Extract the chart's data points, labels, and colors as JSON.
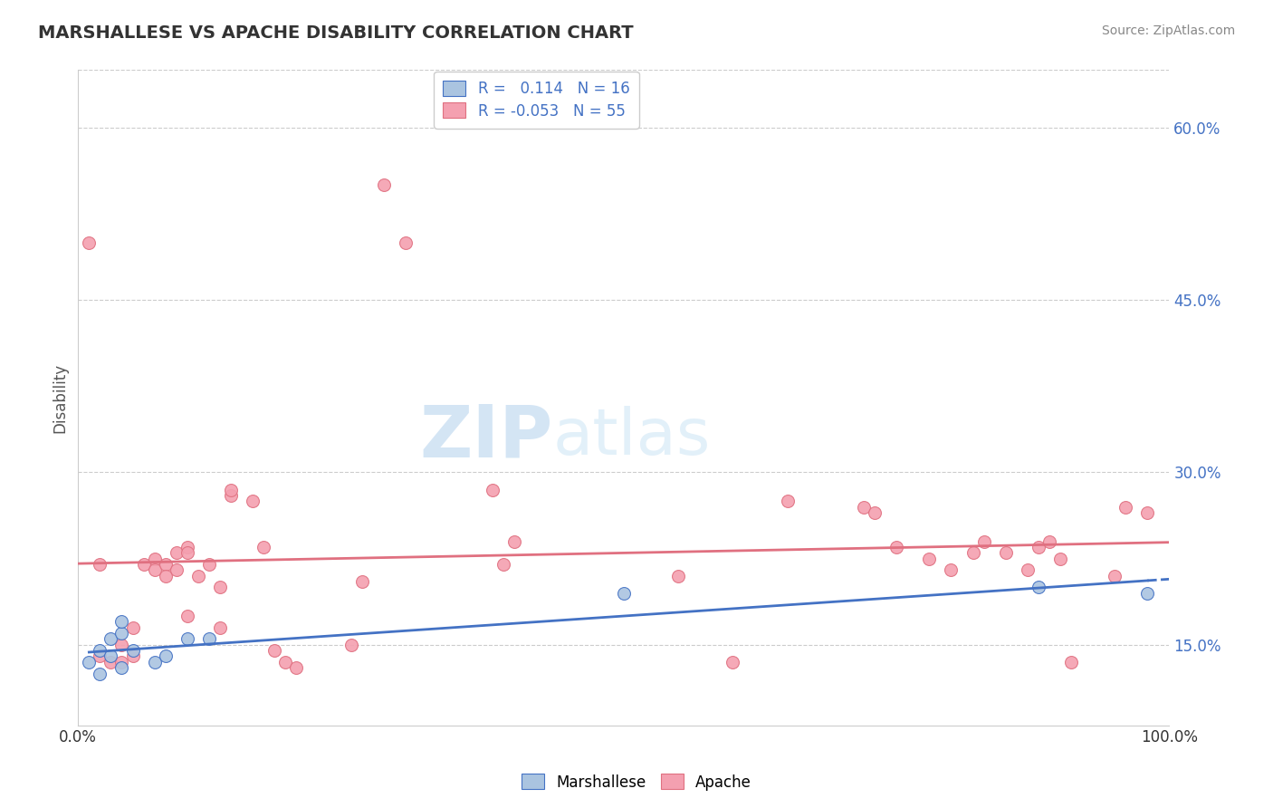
{
  "title": "MARSHALLESE VS APACHE DISABILITY CORRELATION CHART",
  "source": "Source: ZipAtlas.com",
  "ylabel": "Disability",
  "xlim": [
    0.0,
    1.0
  ],
  "ylim": [
    0.08,
    0.65
  ],
  "yticks": [
    0.15,
    0.3,
    0.45,
    0.6
  ],
  "ytick_labels": [
    "15.0%",
    "30.0%",
    "45.0%",
    "60.0%"
  ],
  "grid_color": "#cccccc",
  "background_color": "#ffffff",
  "marshallese_color": "#aac4e0",
  "apache_color": "#f4a0b0",
  "marshallese_line_color": "#4472c4",
  "apache_line_color": "#e07080",
  "marshallese_R": 0.114,
  "marshallese_N": 16,
  "apache_R": -0.053,
  "apache_N": 55,
  "marshallese_x": [
    0.01,
    0.02,
    0.02,
    0.03,
    0.03,
    0.04,
    0.04,
    0.04,
    0.05,
    0.07,
    0.08,
    0.1,
    0.12,
    0.5,
    0.88,
    0.98
  ],
  "marshallese_y": [
    0.135,
    0.145,
    0.125,
    0.155,
    0.14,
    0.16,
    0.17,
    0.13,
    0.145,
    0.135,
    0.14,
    0.155,
    0.155,
    0.195,
    0.2,
    0.195
  ],
  "apache_x": [
    0.01,
    0.02,
    0.02,
    0.03,
    0.04,
    0.04,
    0.05,
    0.05,
    0.06,
    0.07,
    0.07,
    0.08,
    0.08,
    0.09,
    0.09,
    0.1,
    0.1,
    0.1,
    0.11,
    0.12,
    0.13,
    0.13,
    0.14,
    0.14,
    0.16,
    0.17,
    0.18,
    0.19,
    0.2,
    0.25,
    0.26,
    0.28,
    0.3,
    0.38,
    0.39,
    0.4,
    0.55,
    0.6,
    0.65,
    0.72,
    0.73,
    0.75,
    0.78,
    0.8,
    0.82,
    0.83,
    0.85,
    0.87,
    0.88,
    0.89,
    0.9,
    0.91,
    0.95,
    0.96,
    0.98
  ],
  "apache_y": [
    0.5,
    0.22,
    0.14,
    0.135,
    0.15,
    0.135,
    0.165,
    0.14,
    0.22,
    0.225,
    0.215,
    0.22,
    0.21,
    0.23,
    0.215,
    0.235,
    0.23,
    0.175,
    0.21,
    0.22,
    0.165,
    0.2,
    0.28,
    0.285,
    0.275,
    0.235,
    0.145,
    0.135,
    0.13,
    0.15,
    0.205,
    0.55,
    0.5,
    0.285,
    0.22,
    0.24,
    0.21,
    0.135,
    0.275,
    0.27,
    0.265,
    0.235,
    0.225,
    0.215,
    0.23,
    0.24,
    0.23,
    0.215,
    0.235,
    0.24,
    0.225,
    0.135,
    0.21,
    0.27,
    0.265
  ],
  "marker_size": 100,
  "line_width": 2.0
}
